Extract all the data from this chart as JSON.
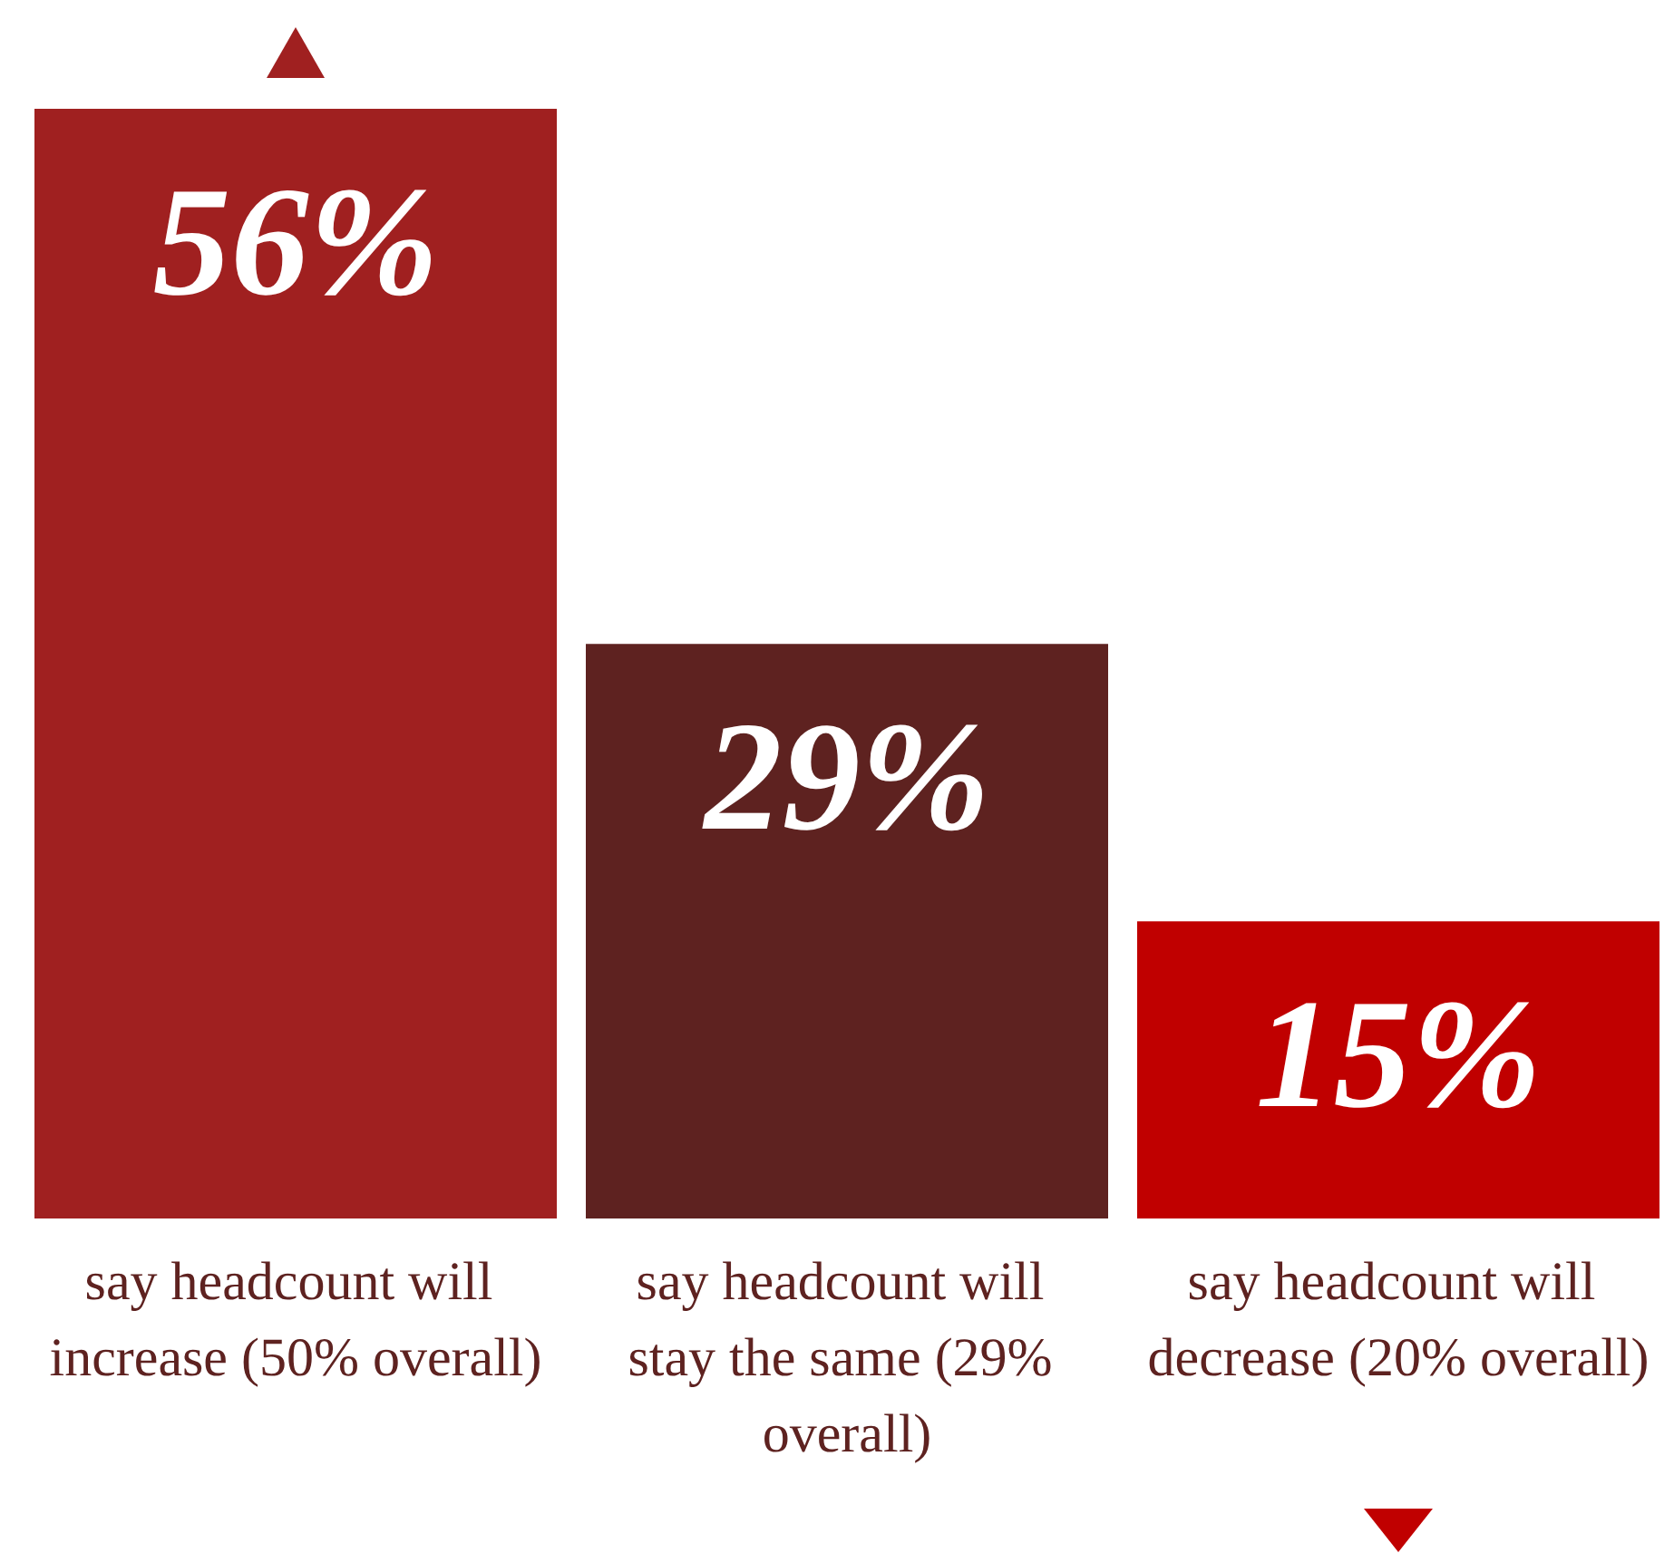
{
  "chart_data": {
    "type": "bar",
    "categories": [
      "say headcount will increase (50% overall)",
      "say headcount will stay the same (29% overall)",
      "say headcount will decrease (20% overall)"
    ],
    "values": [
      56,
      29,
      15
    ],
    "colors": [
      "#a02020",
      "#5e2220",
      "#c00000"
    ],
    "value_labels": [
      "56%",
      "29%",
      "15%"
    ]
  }
}
